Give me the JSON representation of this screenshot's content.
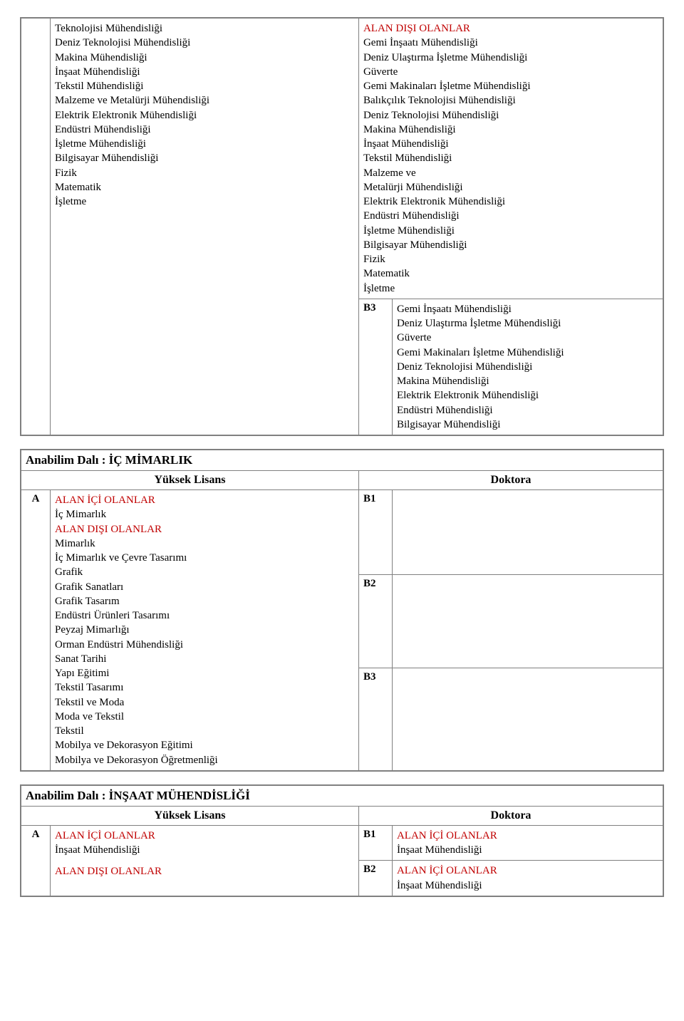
{
  "top": {
    "leftList": [
      "Teknolojisi Mühendisliği",
      "Deniz Teknolojisi Mühendisliği",
      "Makina Mühendisliği",
      "İnşaat Mühendisliği",
      "Tekstil Mühendisliği",
      "Malzeme ve Metalürji Mühendisliği",
      "Elektrik Elektronik Mühendisliği",
      "Endüstri Mühendisliği",
      "İşletme Mühendisliği",
      "Bilgisayar Mühendisliği",
      "Fizik",
      "Matematik",
      "İşletme"
    ],
    "rightTop": {
      "heading": "ALAN DIŞI OLANLAR",
      "items": [
        "Gemi İnşaatı Mühendisliği",
        "Deniz Ulaştırma İşletme Mühendisliği",
        "Güverte",
        "Gemi Makinaları İşletme Mühendisliği",
        "Balıkçılık Teknolojisi Mühendisliği",
        "Deniz Teknolojisi Mühendisliği",
        "Makina Mühendisliği",
        "İnşaat Mühendisliği",
        "Tekstil Mühendisliği",
        "Malzeme ve",
        "Metalürji Mühendisliği",
        "Elektrik Elektronik Mühendisliği",
        "Endüstri Mühendisliği",
        "İşletme Mühendisliği",
        "Bilgisayar Mühendisliği",
        "Fizik",
        "Matematik",
        "İşletme"
      ]
    },
    "rightB3": {
      "code": "B3",
      "items": [
        "Gemi İnşaatı Mühendisliği",
        "Deniz Ulaştırma İşletme Mühendisliği",
        "Güverte",
        "Gemi Makinaları İşletme Mühendisliği",
        "Deniz Teknolojisi Mühendisliği",
        "Makina Mühendisliği",
        "Elektrik Elektronik Mühendisliği",
        "Endüstri Mühendisliği",
        "Bilgisayar Mühendisliği"
      ]
    }
  },
  "icMimarlik": {
    "title": "Anabilim Dalı    :    İÇ MİMARLIK",
    "headerLeft": "Yüksek Lisans",
    "headerRight": "Doktora",
    "rowLabel": "A",
    "alanIci": {
      "heading": "ALAN İÇİ OLANLAR",
      "items": [
        "İç Mimarlık"
      ]
    },
    "alanDisi": {
      "heading": "ALAN DIŞI OLANLAR",
      "items": [
        "Mimarlık",
        "İç Mimarlık ve Çevre Tasarımı",
        "Grafik",
        "Grafik Sanatları",
        "Grafik Tasarım",
        "Endüstri Ürünleri Tasarımı",
        "Peyzaj Mimarlığı",
        "Orman Endüstri Mühendisliği",
        "Sanat Tarihi",
        "Yapı Eğitimi",
        "Tekstil Tasarımı",
        "Tekstil ve Moda",
        "Moda ve Tekstil",
        "Tekstil",
        "Mobilya ve Dekorasyon Eğitimi",
        "Mobilya ve Dekorasyon Öğretmenliği"
      ]
    },
    "codes": {
      "b1": "B1",
      "b2": "B2",
      "b3": "B3"
    }
  },
  "insaat": {
    "title": "Anabilim Dalı    :   İNŞAAT MÜHENDİSLİĞİ",
    "headerLeft": "Yüksek Lisans",
    "headerRight": "Doktora",
    "rowLabel": "A",
    "left": {
      "iciHeading": "ALAN İÇİ OLANLAR",
      "iciItem": "İnşaat Mühendisliği",
      "disiHeading": "ALAN DIŞI OLANLAR"
    },
    "rightB1": {
      "code": "B1",
      "heading": "ALAN İÇİ OLANLAR",
      "item": "İnşaat Mühendisliği"
    },
    "rightB2": {
      "code": "B2",
      "heading": "ALAN İÇİ OLANLAR",
      "item": "İnşaat Mühendisliği"
    }
  }
}
